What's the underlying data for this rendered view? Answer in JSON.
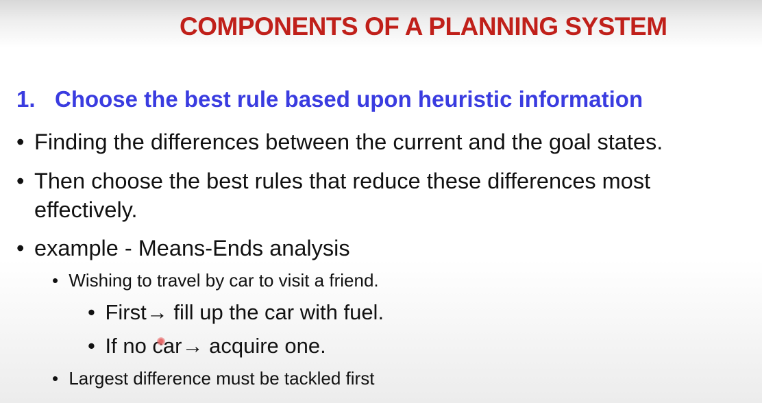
{
  "slide": {
    "title": "COMPONENTS OF A PLANNING SYSTEM",
    "heading_number": "1.",
    "heading_text": "Choose the best rule based upon heuristic information",
    "bullet_char": "•",
    "bullets": [
      "Finding the differences between the current and the goal states.",
      "Then choose the best rules that reduce these differences most effectively.",
      "example - Means-Ends analysis"
    ],
    "sub_bullets": [
      "Wishing to travel by car to visit a friend.",
      "Largest difference must be tackled first"
    ],
    "sub_sub_bullets": [
      "First→ fill up the car with fuel.",
      "If no car→ acquire one."
    ],
    "colors": {
      "title": "#c0201a",
      "heading": "#3a3ce0"
    }
  }
}
